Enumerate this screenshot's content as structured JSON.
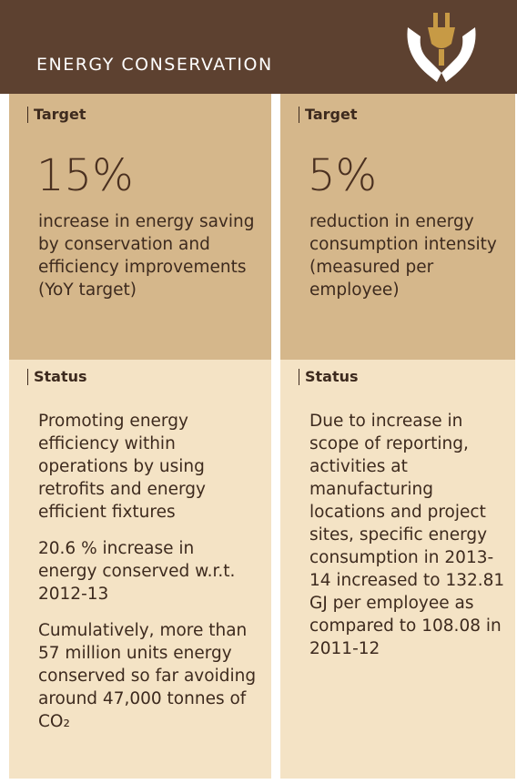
{
  "header": {
    "title": "ENERGY CONSERVATION"
  },
  "columns": [
    {
      "target_label": "Target",
      "target_value": "15%",
      "target_text": "increase in energy saving by conservation and efficiency improvements (YoY target)",
      "status_label": "Status",
      "status_items": [
        "Promoting energy efficiency within operations by using retrofits and energy efficient fixtures",
        "20.6 % increase in energy conserved w.r.t. 2012-13",
        "Cumulatively, more than 57 million units energy conserved so far avoiding around 47,000 tonnes of CO₂"
      ]
    },
    {
      "target_label": "Target",
      "target_value": "5%",
      "target_text": "reduction in energy consumption intensity (measured per employee)",
      "status_label": "Status",
      "status_items": [
        "Due to increase in scope of reporting, activities at manufacturing locations and project sites, specific energy consumption in 2013-14 increased to 132.81 GJ per employee as compared to 108.08 in 2011-12"
      ]
    }
  ]
}
